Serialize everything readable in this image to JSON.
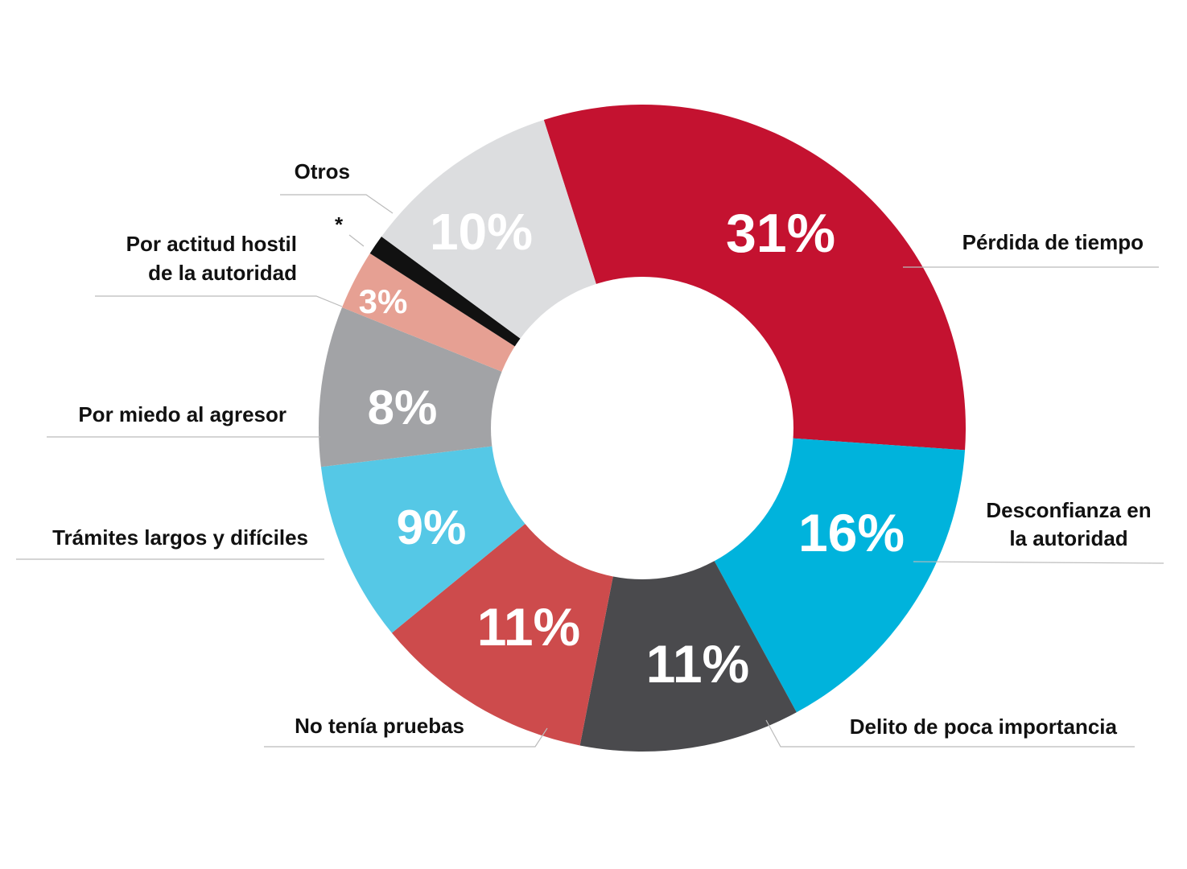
{
  "chart_data": {
    "type": "pie",
    "donut": true,
    "title": "",
    "slices": [
      {
        "label": "Pérdida de tiempo",
        "value": 31,
        "value_label": "31%",
        "color": "#C41230"
      },
      {
        "label": "Desconfianza en la autoridad",
        "label_lines": [
          "Desconfianza en",
          "la autoridad"
        ],
        "value": 16,
        "value_label": "16%",
        "color": "#00B3DC"
      },
      {
        "label": "Delito de poca importancia",
        "value": 11,
        "value_label": "11%",
        "color": "#4A4A4D"
      },
      {
        "label": "No tenía pruebas",
        "value": 11,
        "value_label": "11%",
        "color": "#CD4B4C"
      },
      {
        "label": "Trámites largos y difíciles",
        "value": 9,
        "value_label": "9%",
        "color": "#55C8E6"
      },
      {
        "label": "Por miedo al agresor",
        "value": 8,
        "value_label": "8%",
        "color": "#A2A3A6"
      },
      {
        "label": "Por actitud hostil de la autoridad",
        "label_lines": [
          "Por actitud hostil",
          "de la autoridad"
        ],
        "value": 3,
        "value_label": "3%",
        "color": "#E6A093"
      },
      {
        "label": "*",
        "value": 1,
        "value_label": "",
        "color": "#111111"
      },
      {
        "label": "Otros",
        "value": 10,
        "value_label": "10%",
        "color": "#DCDDDF"
      }
    ],
    "legend": "none (labels placed beside slices with leader lines)"
  }
}
